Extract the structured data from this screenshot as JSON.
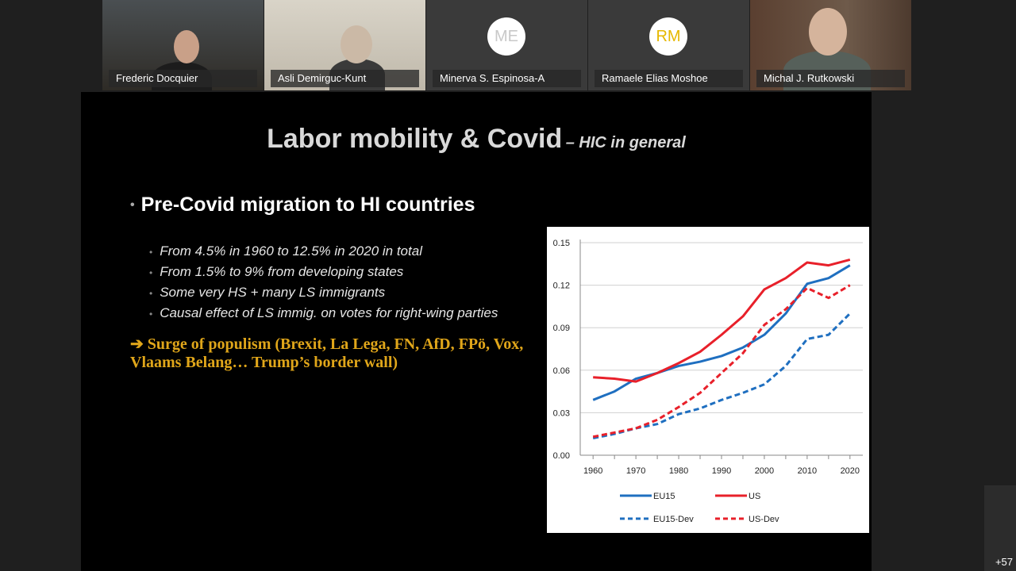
{
  "participants": [
    {
      "name": "Frederic Docquier",
      "type": "video"
    },
    {
      "name": "Asli Demirguc-Kunt",
      "type": "video"
    },
    {
      "name": "Minerva S. Espinosa-A",
      "type": "avatar",
      "initials": "ME",
      "initials_color": "#c8c8c8"
    },
    {
      "name": "Ramaele Elias Moshoe",
      "type": "avatar",
      "initials": "RM",
      "initials_color": "#e6b800"
    },
    {
      "name": "Michal J. Rutkowski",
      "type": "video"
    }
  ],
  "more_participants": "+57",
  "slide": {
    "title": "Labor mobility & Covid",
    "subtitle": "– HIC in general",
    "bullet": "Pre-Covid migration to HI countries",
    "sub_bullets": [
      "From 4.5% in 1960 to 12.5% in 2020 in total",
      "From 1.5% to 9% from developing states",
      "Some very HS + many LS immigrants",
      "Causal effect of LS immig. on votes for right-wing parties"
    ],
    "conclusion_arrow": "➔",
    "conclusion": "Surge of populism (Brexit, La Lega, FN, AfD, FPö, Vox, Vlaams Belang… Trump’s border wall)"
  },
  "chart_data": {
    "type": "line",
    "x": [
      1960,
      1965,
      1970,
      1975,
      1980,
      1985,
      1990,
      1995,
      2000,
      2005,
      2010,
      2015,
      2020
    ],
    "xticks": [
      "1960",
      "1970",
      "1980",
      "1990",
      "2000",
      "2010",
      "2020"
    ],
    "yticks": [
      "0.00",
      "0.03",
      "0.06",
      "0.09",
      "0.12",
      "0.15"
    ],
    "ylim": [
      0,
      0.15
    ],
    "xlim": [
      1957,
      2023
    ],
    "grid": true,
    "legend_position": "bottom",
    "series": [
      {
        "name": "EU15",
        "color": "#1f6fc0",
        "style": "solid",
        "values": [
          0.039,
          0.045,
          0.054,
          0.058,
          0.063,
          0.066,
          0.07,
          0.076,
          0.085,
          0.1,
          0.121,
          0.125,
          0.134
        ]
      },
      {
        "name": "US",
        "color": "#e8202a",
        "style": "solid",
        "values": [
          0.055,
          0.054,
          0.052,
          0.058,
          0.065,
          0.073,
          0.085,
          0.098,
          0.117,
          0.125,
          0.136,
          0.134,
          0.138
        ]
      },
      {
        "name": "EU15-Dev",
        "color": "#1f6fc0",
        "style": "dashed",
        "values": [
          0.012,
          0.015,
          0.019,
          0.022,
          0.029,
          0.033,
          0.039,
          0.044,
          0.05,
          0.063,
          0.082,
          0.085,
          0.1
        ]
      },
      {
        "name": "US-Dev",
        "color": "#e8202a",
        "style": "dashed",
        "values": [
          0.013,
          0.016,
          0.019,
          0.025,
          0.034,
          0.044,
          0.058,
          0.072,
          0.092,
          0.103,
          0.118,
          0.111,
          0.12
        ]
      }
    ]
  }
}
